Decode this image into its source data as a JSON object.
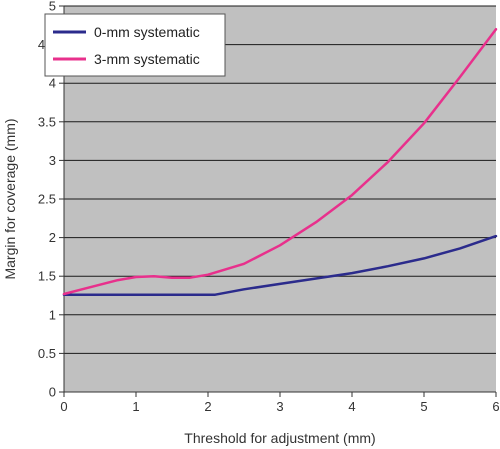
{
  "chart_data": {
    "type": "line",
    "xlabel": "Threshold for adjustment (mm)",
    "ylabel": "Margin for coverage (mm)",
    "xlim": [
      0,
      6
    ],
    "ylim": [
      0,
      5
    ],
    "x_ticks": [
      0,
      1,
      2,
      3,
      4,
      5,
      6
    ],
    "y_ticks": [
      0,
      0.5,
      1,
      1.5,
      2,
      2.5,
      3,
      3.5,
      4,
      4.5,
      5
    ],
    "x_tick_labels": [
      "0",
      "1",
      "2",
      "3",
      "4",
      "5",
      "6"
    ],
    "y_tick_labels": [
      "0",
      "0.5",
      "1",
      "1.5",
      "2",
      "2.5",
      "3",
      "3.5",
      "4",
      "4.5",
      "5"
    ],
    "grid": "horizontal",
    "background_color": "#c0c0c0",
    "legend": "top-left",
    "series": [
      {
        "name": "0-mm systematic",
        "color": "#2b2b8c",
        "x": [
          0,
          0.5,
          1,
          1.5,
          2,
          2.1,
          2.5,
          3,
          3.5,
          4,
          4.5,
          5,
          5.5,
          6
        ],
        "y": [
          1.26,
          1.26,
          1.26,
          1.26,
          1.26,
          1.26,
          1.33,
          1.4,
          1.47,
          1.54,
          1.63,
          1.73,
          1.86,
          2.02
        ]
      },
      {
        "name": "3-mm systematic",
        "color": "#e8308c",
        "x": [
          0,
          0.25,
          0.5,
          0.75,
          1,
          1.25,
          1.5,
          1.75,
          2,
          2.5,
          3,
          3.5,
          4,
          4.5,
          5,
          5.5,
          6
        ],
        "y": [
          1.27,
          1.33,
          1.39,
          1.45,
          1.49,
          1.5,
          1.48,
          1.48,
          1.52,
          1.66,
          1.9,
          2.2,
          2.55,
          2.98,
          3.48,
          4.08,
          4.7
        ]
      }
    ]
  }
}
